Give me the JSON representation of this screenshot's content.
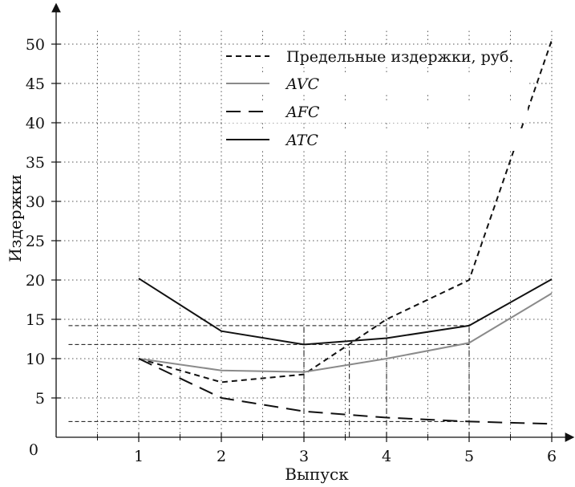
{
  "chart_data": {
    "type": "line",
    "title": "",
    "xlabel": "Выпуск",
    "ylabel": "Издержки",
    "xlim": [
      0,
      6.3
    ],
    "ylim": [
      0,
      53
    ],
    "x_ticks": [
      1,
      2,
      3,
      4,
      5,
      6
    ],
    "y_ticks": [
      5,
      10,
      15,
      20,
      25,
      30,
      35,
      40,
      45,
      50
    ],
    "origin_label": "0",
    "grid": true,
    "grid_style": "dotted",
    "legend_position": "top-right",
    "series": [
      {
        "name": "Предельные издержки, руб.",
        "style": "short-dash",
        "color": "#111111",
        "x": [
          1,
          2,
          3,
          4,
          5,
          6
        ],
        "y": [
          10,
          7,
          8,
          15,
          20,
          50.5
        ]
      },
      {
        "name": "AVC",
        "style": "solid",
        "color": "#8a8a8a",
        "x": [
          1,
          2,
          3,
          4,
          5,
          6
        ],
        "y": [
          10,
          8.5,
          8.3,
          10,
          12,
          18.3
        ]
      },
      {
        "name": "AFC",
        "style": "long-dash",
        "color": "#111111",
        "x": [
          1,
          2,
          3,
          4,
          5,
          6
        ],
        "y": [
          10,
          5,
          3.3,
          2.5,
          2,
          1.7
        ]
      },
      {
        "name": "ATC",
        "style": "solid",
        "color": "#111111",
        "x": [
          1,
          2,
          3,
          4,
          5,
          6
        ],
        "y": [
          20.2,
          13.5,
          11.8,
          12.6,
          14.2,
          20.1
        ]
      }
    ],
    "reference_lines": [
      {
        "type": "horizontal",
        "y": 14.2,
        "x_to": 5,
        "style": "dashed"
      },
      {
        "type": "horizontal",
        "y": 11.8,
        "x_to": 5,
        "style": "dashed"
      },
      {
        "type": "horizontal",
        "y": 2,
        "x_to": 5,
        "style": "dashed"
      },
      {
        "type": "vertical",
        "x": 3,
        "y_to": 14.2,
        "style": "dash-dot"
      },
      {
        "type": "vertical",
        "x": 3.55,
        "y_to": 11.8,
        "style": "dash-dot"
      },
      {
        "type": "vertical",
        "x": 4,
        "y_to": 15,
        "style": "dash-dot"
      },
      {
        "type": "vertical",
        "x": 5,
        "y_to": 14.2,
        "style": "dash-dot"
      }
    ]
  }
}
